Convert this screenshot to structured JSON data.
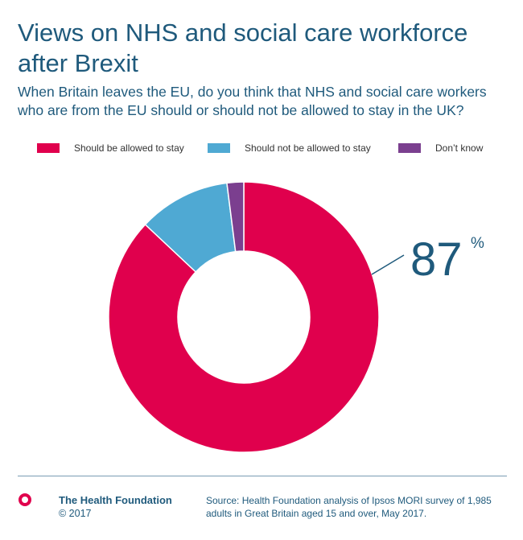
{
  "title": "Views on NHS and social care workforce after Brexit",
  "subtitle": "When Britain leaves the EU, do you think that NHS and social care workers who are from the EU should or should not be allowed to stay in the UK?",
  "chart_data": {
    "type": "pie",
    "donut": true,
    "legend_position": "top",
    "categories": [
      "Should be allowed to stay",
      "Should not be allowed to stay",
      "Don’t know"
    ],
    "values": [
      87,
      11,
      2
    ],
    "colors": [
      "#e0004d",
      "#4fa9d3",
      "#7b3f8f"
    ],
    "callout": {
      "value": "87",
      "unit": "%"
    }
  },
  "footer": {
    "organisation": "The Health Foundation",
    "copyright": "© 2017",
    "source": "Source: Health Foundation analysis of Ipsos MORI survey of 1,985 adults in Great Britain aged 15 and over, May 2017."
  }
}
